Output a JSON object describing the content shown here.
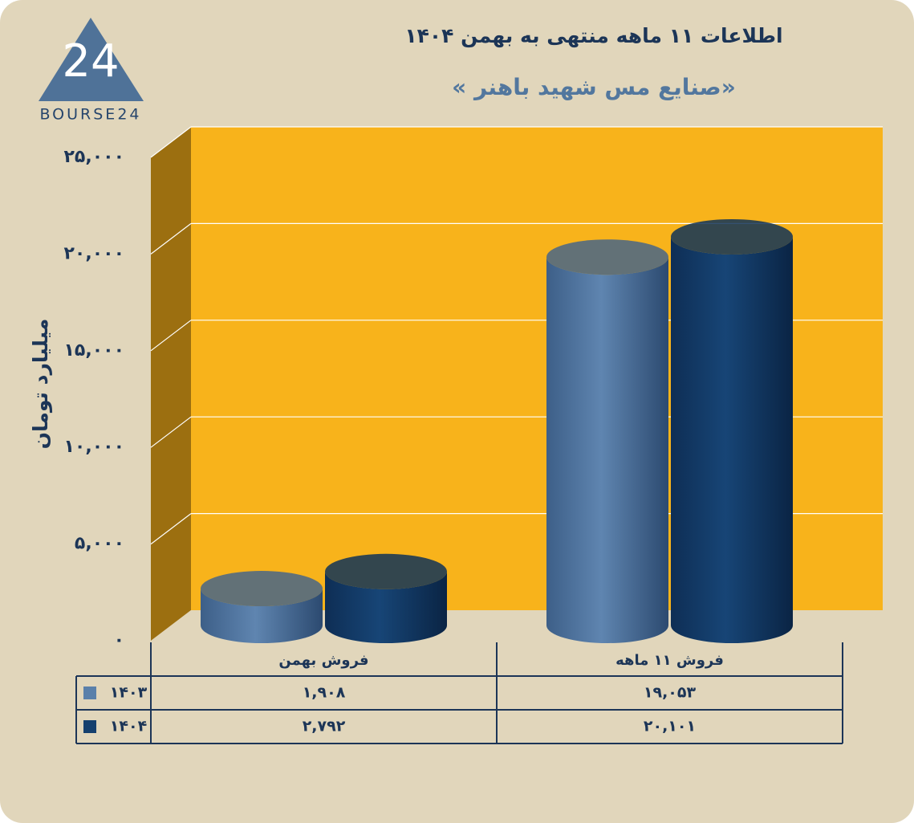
{
  "logo": {
    "mark": "24",
    "text": "BOURSE24"
  },
  "chart_data": {
    "type": "cylinder-bar",
    "title": "اطلاعات ۱۱ ماهه منتهی به بهمن ۱۴۰۴",
    "subtitle": "« صنایع مس شهید باهنر»",
    "y_label": "میلیارد تومان",
    "categories": [
      "فروش بهمن",
      "فروش ۱۱ ماهه"
    ],
    "series": [
      {
        "name": "۱۴۰۳",
        "color": "#5a80aa",
        "values": [
          1908,
          19053
        ],
        "value_labels": [
          "۱,۹۰۸",
          "۱۹,۰۵۳"
        ]
      },
      {
        "name": "۱۴۰۴",
        "color": "#15406e",
        "values": [
          2792,
          20101
        ],
        "value_labels": [
          "۲,۷۹۲",
          "۲۰,۱۰۱"
        ]
      }
    ],
    "ylim": [
      0,
      25000
    ],
    "yticks": [
      {
        "value": 0,
        "label": "۰"
      },
      {
        "value": 5000,
        "label": "۵,۰۰۰"
      },
      {
        "value": 10000,
        "label": "۱۰,۰۰۰"
      },
      {
        "value": 15000,
        "label": "۱۵,۰۰۰"
      },
      {
        "value": 20000,
        "label": "۲۰,۰۰۰"
      },
      {
        "value": 25000,
        "label": "۲۵,۰۰۰"
      }
    ],
    "grid": true,
    "wall_color": "#f8b31b"
  }
}
